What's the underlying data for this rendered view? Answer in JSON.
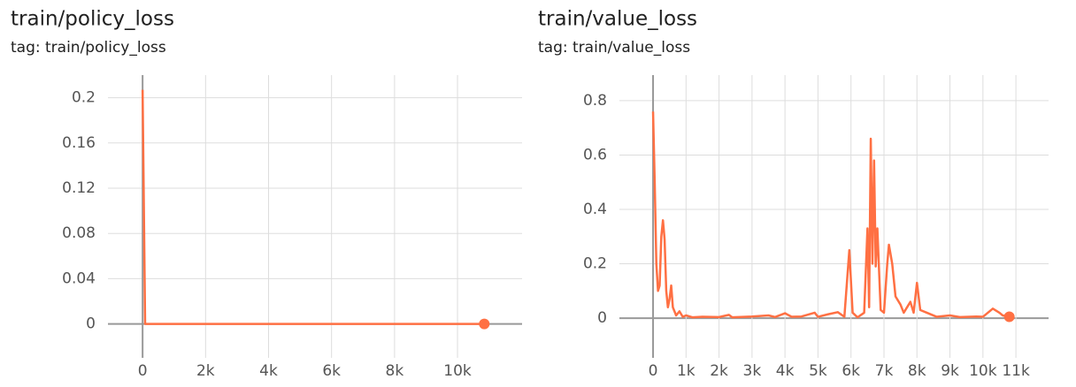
{
  "chart_data": [
    {
      "type": "line",
      "title": "train/policy_loss",
      "subtitle": "tag: train/policy_loss",
      "color": "#ff7043",
      "grid": true,
      "x": [
        0,
        80,
        10850
      ],
      "values": [
        0.207,
        0.0,
        0.0
      ],
      "xlim": [
        -1100,
        12050
      ],
      "xticks": [
        {
          "value": 0,
          "label": "0"
        },
        {
          "value": 2000,
          "label": "2k"
        },
        {
          "value": 4000,
          "label": "4k"
        },
        {
          "value": 6000,
          "label": "6k"
        },
        {
          "value": 8000,
          "label": "8k"
        },
        {
          "value": 10000,
          "label": "10k"
        }
      ],
      "ylim": [
        -0.03,
        0.22
      ],
      "yticks": [
        0,
        0.04,
        0.08,
        0.12,
        0.16,
        0.2
      ]
    },
    {
      "type": "line",
      "title": "train/value_loss",
      "subtitle": "tag: train/value_loss",
      "color": "#ff7043",
      "grid": true,
      "x": [
        0,
        50,
        100,
        150,
        200,
        250,
        300,
        350,
        400,
        450,
        500,
        550,
        600,
        700,
        800,
        900,
        1000,
        1200,
        1500,
        2000,
        2300,
        2400,
        3000,
        3500,
        3700,
        4000,
        4200,
        4500,
        4900,
        5000,
        5300,
        5600,
        5800,
        5950,
        6050,
        6200,
        6400,
        6500,
        6550,
        6600,
        6650,
        6700,
        6750,
        6800,
        6900,
        7000,
        7100,
        7150,
        7250,
        7350,
        7500,
        7600,
        7800,
        7900,
        8000,
        8100,
        8300,
        8600,
        9000,
        9300,
        9800,
        10000,
        10300,
        10500,
        10600,
        10800
      ],
      "values": [
        0.76,
        0.5,
        0.2,
        0.1,
        0.12,
        0.3,
        0.36,
        0.29,
        0.1,
        0.04,
        0.07,
        0.12,
        0.04,
        0.01,
        0.025,
        0.005,
        0.01,
        0.003,
        0.005,
        0.004,
        0.012,
        0.003,
        0.006,
        0.01,
        0.004,
        0.018,
        0.005,
        0.006,
        0.02,
        0.005,
        0.014,
        0.022,
        0.005,
        0.25,
        0.02,
        0.003,
        0.02,
        0.33,
        0.04,
        0.66,
        0.2,
        0.58,
        0.19,
        0.33,
        0.03,
        0.02,
        0.2,
        0.27,
        0.2,
        0.08,
        0.05,
        0.02,
        0.06,
        0.02,
        0.13,
        0.03,
        0.02,
        0.005,
        0.01,
        0.004,
        0.006,
        0.005,
        0.035,
        0.02,
        0.01,
        0.005
      ],
      "xlim": [
        -1020,
        11990
      ],
      "xticks": [
        {
          "value": 0,
          "label": "0"
        },
        {
          "value": 1000,
          "label": "1k"
        },
        {
          "value": 2000,
          "label": "2k"
        },
        {
          "value": 3000,
          "label": "3k"
        },
        {
          "value": 4000,
          "label": "4k"
        },
        {
          "value": 5000,
          "label": "5k"
        },
        {
          "value": 6000,
          "label": "6k"
        },
        {
          "value": 7000,
          "label": "7k"
        },
        {
          "value": 8000,
          "label": "8k"
        },
        {
          "value": 9000,
          "label": "9k"
        },
        {
          "value": 10000,
          "label": "10k"
        },
        {
          "value": 11000,
          "label": "11k"
        }
      ],
      "ylim": [
        -0.146,
        0.894
      ],
      "yticks": [
        0,
        0.2,
        0.4,
        0.6,
        0.8
      ]
    }
  ]
}
